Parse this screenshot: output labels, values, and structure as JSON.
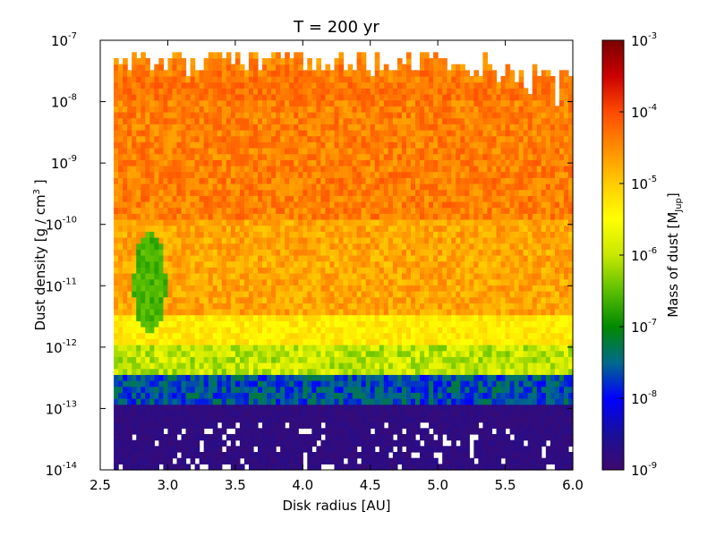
{
  "chart_data": {
    "type": "heatmap",
    "title": "T =  200 yr",
    "xlabel": "Disk radius [AU]",
    "ylabel": {
      "main": "Dust density [g / cm",
      "sup": "3",
      "tail": " ]"
    },
    "xlim": [
      2.5,
      6.0
    ],
    "ylim_log10": [
      -14,
      -7
    ],
    "yscale": "log",
    "x_ticks": [
      "2.5",
      "3.0",
      "3.5",
      "4.0",
      "4.5",
      "5.0",
      "5.5",
      "6.0"
    ],
    "y_ticks": [
      {
        "base": "10",
        "exp": "-7"
      },
      {
        "base": "10",
        "exp": "-8"
      },
      {
        "base": "10",
        "exp": "-9"
      },
      {
        "base": "10",
        "exp": "-10"
      },
      {
        "base": "10",
        "exp": "-11"
      },
      {
        "base": "10",
        "exp": "-12"
      },
      {
        "base": "10",
        "exp": "-13"
      },
      {
        "base": "10",
        "exp": "-14"
      }
    ],
    "colorbar": {
      "label": {
        "main": "Mass of dust [M",
        "sub": "Jup",
        "tail": "]"
      },
      "scale": "log",
      "range_log10": [
        -9,
        -3
      ],
      "ticks": [
        {
          "base": "10",
          "exp": "-3"
        },
        {
          "base": "10",
          "exp": "-4"
        },
        {
          "base": "10",
          "exp": "-5"
        },
        {
          "base": "10",
          "exp": "-6"
        },
        {
          "base": "10",
          "exp": "-7"
        },
        {
          "base": "10",
          "exp": "-8"
        },
        {
          "base": "10",
          "exp": "-9"
        }
      ],
      "colormap": [
        "#3d0a6e",
        "#1a0f9a",
        "#0000ff",
        "#006a8a",
        "#008a00",
        "#5bbf00",
        "#c8e800",
        "#ffff00",
        "#ffcc00",
        "#ff8c00",
        "#ff4a00",
        "#cc0000",
        "#7a0000"
      ]
    },
    "description_profile": {
      "x_bins": 105,
      "y_bins": 72,
      "columns_start_x": 2.6,
      "top_edge_log10": [
        -7.6,
        -7.2
      ],
      "dense_band_log10": [
        -11.5,
        -8.0
      ],
      "dense_band_mass_log10": [
        -5.0,
        -4.0
      ],
      "bright_yellow_layer_log10": [
        -12.0,
        -10.0
      ],
      "blue_layer_log10": [
        -13.0,
        -12.5
      ],
      "purple_floor_log10": [
        -14.0,
        -13.0
      ],
      "green_pocket": {
        "x": 2.85,
        "y_log10": -11.0
      }
    }
  }
}
